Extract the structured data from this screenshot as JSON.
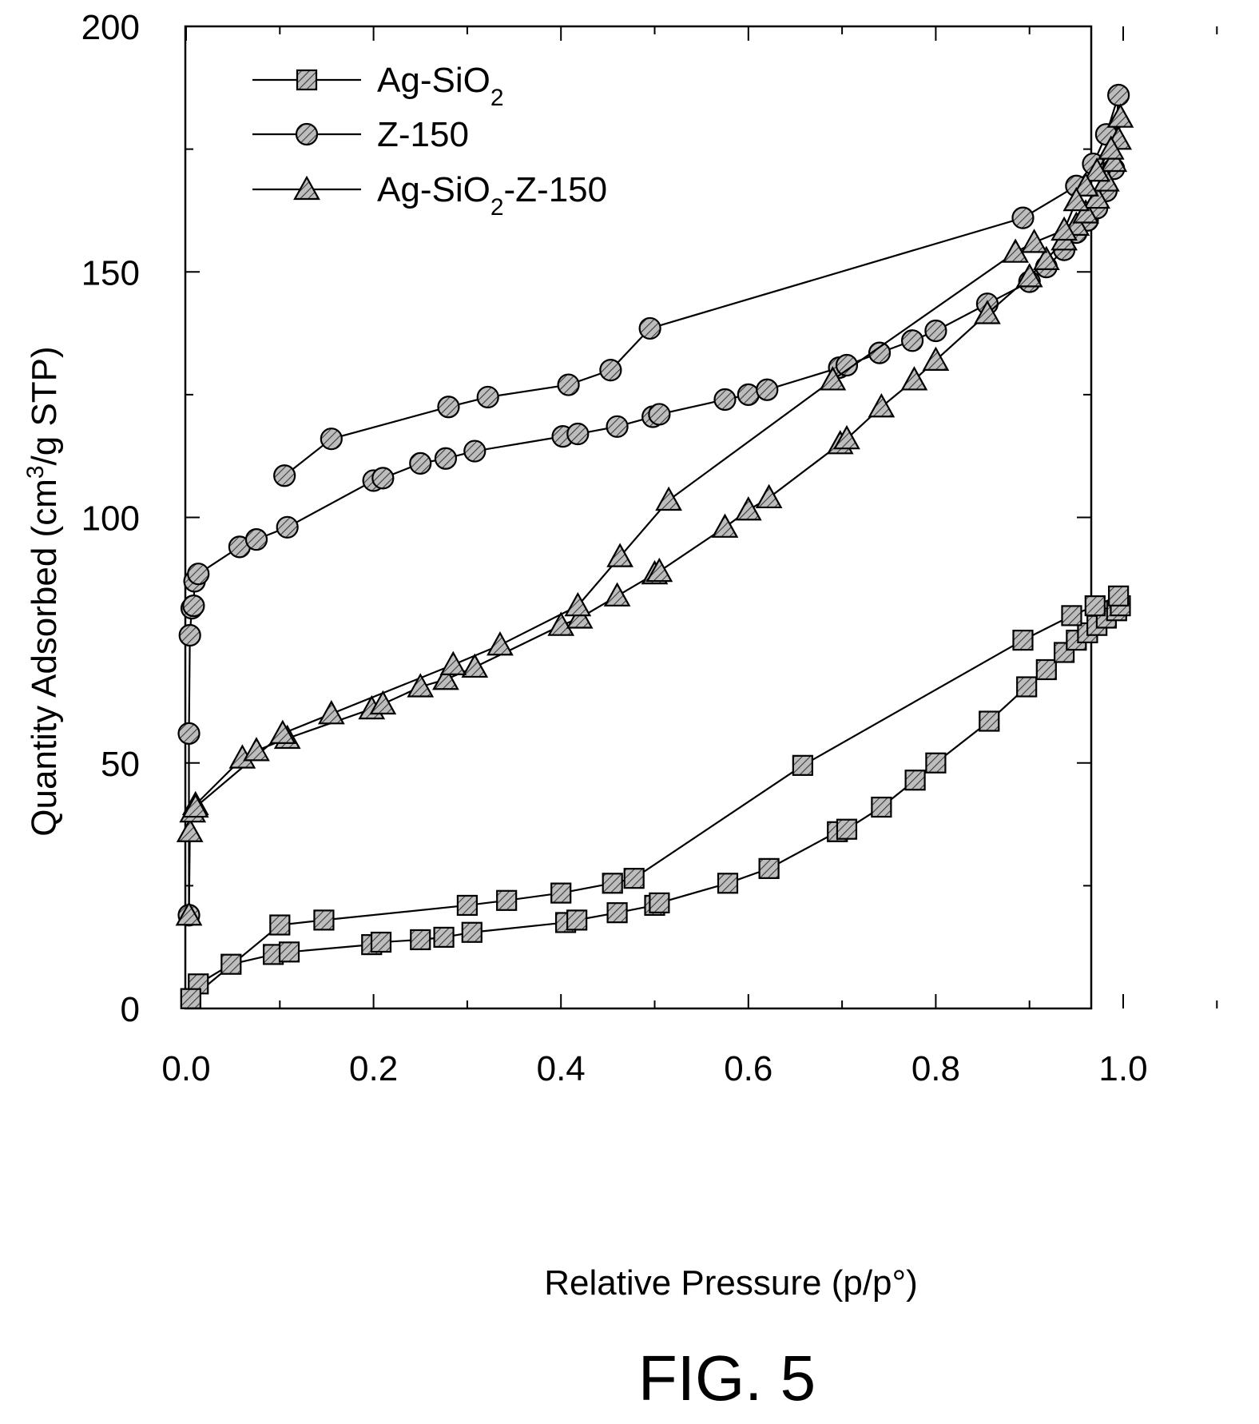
{
  "chart_data": {
    "type": "scatter",
    "xlabel": "Relative Pressure (p/p°)",
    "ylabel": {
      "pre": "Quantity Adsorbed (cm",
      "sup": "3",
      "post": "/g STP)"
    },
    "xlim": [
      0.0,
      1.1
    ],
    "ylim": [
      0,
      200
    ],
    "xticks": [
      0.0,
      0.2,
      0.4,
      0.6,
      0.8,
      1.0
    ],
    "xtick_labels": [
      "0.0",
      "0.2",
      "0.4",
      "0.6",
      "0.8",
      "1.0"
    ],
    "yticks": [
      0,
      50,
      100,
      150,
      200
    ],
    "ytick_labels": [
      "0",
      "50",
      "100",
      "150",
      "200"
    ],
    "grid": false,
    "legend_position": "top-left",
    "caption": "FIG. 5",
    "series": [
      {
        "name_parts": [
          {
            "t": "Ag-SiO"
          },
          {
            "t": "2",
            "sub": true
          }
        ],
        "marker": "square",
        "points": [
          [
            0.005,
            2
          ],
          [
            0.013,
            5
          ],
          [
            0.048,
            9
          ],
          [
            0.093,
            11
          ],
          [
            0.11,
            11.5
          ],
          [
            0.198,
            13
          ],
          [
            0.208,
            13.5
          ],
          [
            0.25,
            14
          ],
          [
            0.275,
            14.5
          ],
          [
            0.305,
            15.5
          ],
          [
            0.405,
            17.5
          ],
          [
            0.417,
            18
          ],
          [
            0.46,
            19.5
          ],
          [
            0.5,
            21
          ],
          [
            0.505,
            21.5
          ],
          [
            0.578,
            25.5
          ],
          [
            0.622,
            28.5
          ],
          [
            0.695,
            36
          ],
          [
            0.705,
            36.5
          ],
          [
            0.742,
            41
          ],
          [
            0.778,
            46.5
          ],
          [
            0.8,
            50
          ],
          [
            0.857,
            58.5
          ],
          [
            0.897,
            65.5
          ],
          [
            0.918,
            69
          ],
          [
            0.937,
            72.5
          ],
          [
            0.95,
            75
          ],
          [
            0.962,
            76.5
          ],
          [
            0.972,
            78
          ],
          [
            0.982,
            79.5
          ],
          [
            0.993,
            81
          ],
          [
            0.997,
            82
          ],
          [
            0.995,
            84
          ],
          [
            0.97,
            82
          ],
          [
            0.945,
            80
          ],
          [
            0.893,
            75
          ],
          [
            0.658,
            49.5
          ],
          [
            0.478,
            26.5
          ],
          [
            0.455,
            25.5
          ],
          [
            0.4,
            23.5
          ],
          [
            0.342,
            22
          ],
          [
            0.3,
            21
          ],
          [
            0.147,
            18
          ],
          [
            0.1,
            17
          ],
          [
            0.005,
            2
          ]
        ]
      },
      {
        "name_parts": [
          {
            "t": "Z-150"
          }
        ],
        "marker": "circle",
        "points": [
          [
            0.003,
            19
          ],
          [
            0.003,
            56
          ],
          [
            0.004,
            76
          ],
          [
            0.006,
            81.5
          ],
          [
            0.008,
            82
          ],
          [
            0.009,
            87
          ],
          [
            0.013,
            88.5
          ],
          [
            0.057,
            94
          ],
          [
            0.075,
            95.5
          ],
          [
            0.108,
            98
          ],
          [
            0.2,
            107.5
          ],
          [
            0.21,
            108
          ],
          [
            0.25,
            111
          ],
          [
            0.277,
            112
          ],
          [
            0.308,
            113.5
          ],
          [
            0.402,
            116.5
          ],
          [
            0.418,
            117
          ],
          [
            0.46,
            118.5
          ],
          [
            0.498,
            120.5
          ],
          [
            0.505,
            121
          ],
          [
            0.575,
            124
          ],
          [
            0.6,
            125
          ],
          [
            0.62,
            126
          ],
          [
            0.697,
            130.5
          ],
          [
            0.705,
            131
          ],
          [
            0.74,
            133.5
          ],
          [
            0.775,
            136
          ],
          [
            0.8,
            138
          ],
          [
            0.855,
            143.5
          ],
          [
            0.9,
            148
          ],
          [
            0.918,
            151
          ],
          [
            0.937,
            154.5
          ],
          [
            0.95,
            158
          ],
          [
            0.962,
            160.5
          ],
          [
            0.972,
            163
          ],
          [
            0.982,
            166.5
          ],
          [
            0.99,
            171
          ],
          [
            0.995,
            186
          ],
          [
            0.982,
            178
          ],
          [
            0.968,
            172
          ],
          [
            0.95,
            167.5
          ],
          [
            0.893,
            161
          ],
          [
            0.495,
            138.5
          ],
          [
            0.453,
            130
          ],
          [
            0.408,
            127
          ],
          [
            0.322,
            124.5
          ],
          [
            0.28,
            122.5
          ],
          [
            0.155,
            116
          ],
          [
            0.105,
            108.5
          ]
        ]
      },
      {
        "name_parts": [
          {
            "t": "Ag-SiO"
          },
          {
            "t": "2",
            "sub": true
          },
          {
            "t": "-Z-150"
          }
        ],
        "marker": "triangle",
        "points": [
          [
            0.003,
            19
          ],
          [
            0.004,
            36
          ],
          [
            0.007,
            40
          ],
          [
            0.01,
            41.5
          ],
          [
            0.06,
            51
          ],
          [
            0.075,
            52.5
          ],
          [
            0.108,
            55
          ],
          [
            0.198,
            61
          ],
          [
            0.21,
            62
          ],
          [
            0.25,
            65.5
          ],
          [
            0.277,
            67
          ],
          [
            0.308,
            69.5
          ],
          [
            0.4,
            78
          ],
          [
            0.42,
            79.5
          ],
          [
            0.46,
            84
          ],
          [
            0.5,
            88.5
          ],
          [
            0.505,
            89
          ],
          [
            0.575,
            98
          ],
          [
            0.6,
            101.5
          ],
          [
            0.622,
            104
          ],
          [
            0.698,
            115
          ],
          [
            0.705,
            116
          ],
          [
            0.742,
            122.5
          ],
          [
            0.777,
            128
          ],
          [
            0.8,
            132
          ],
          [
            0.855,
            141.5
          ],
          [
            0.9,
            149
          ],
          [
            0.918,
            152.5
          ],
          [
            0.937,
            156.5
          ],
          [
            0.95,
            159.5
          ],
          [
            0.96,
            162
          ],
          [
            0.972,
            165
          ],
          [
            0.982,
            168.5
          ],
          [
            0.99,
            172.5
          ],
          [
            0.995,
            177
          ],
          [
            0.997,
            181.5
          ],
          [
            0.987,
            175
          ],
          [
            0.972,
            170.5
          ],
          [
            0.96,
            167.5
          ],
          [
            0.95,
            164.5
          ],
          [
            0.937,
            158.5
          ],
          [
            0.905,
            156
          ],
          [
            0.885,
            154
          ],
          [
            0.69,
            128
          ],
          [
            0.515,
            103.5
          ],
          [
            0.463,
            92
          ],
          [
            0.418,
            82
          ],
          [
            0.335,
            74
          ],
          [
            0.285,
            70
          ],
          [
            0.155,
            60
          ],
          [
            0.103,
            56
          ],
          [
            0.01,
            41
          ]
        ]
      }
    ]
  }
}
